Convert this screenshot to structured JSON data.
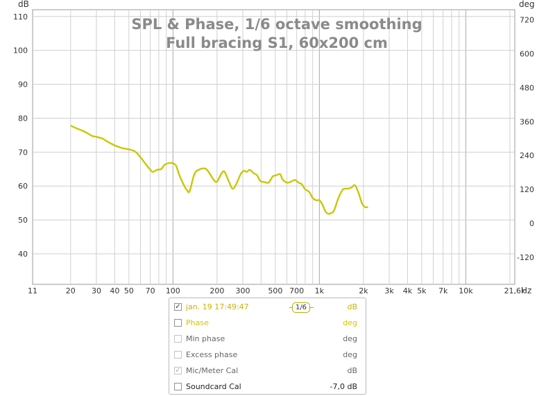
{
  "chart_data": {
    "type": "line",
    "title": [
      "SPL & Phase, 1/6 octave smoothing",
      "Full bracing S1, 60x200 cm"
    ],
    "xlabel": "Hz",
    "left_unit": "dB",
    "right_unit": "deg",
    "xscale": "log",
    "xlim": [
      11,
      21600
    ],
    "ylim": [
      31,
      112
    ],
    "y2lim": [
      -216,
      756
    ],
    "grid": true,
    "x_ticks": [
      {
        "v": 11,
        "label": "11"
      },
      {
        "v": 20,
        "label": "20"
      },
      {
        "v": 30,
        "label": "30"
      },
      {
        "v": 40,
        "label": "40"
      },
      {
        "v": 50,
        "label": "50"
      },
      {
        "v": 70,
        "label": "70"
      },
      {
        "v": 100,
        "label": "100"
      },
      {
        "v": 200,
        "label": "200"
      },
      {
        "v": 300,
        "label": "300"
      },
      {
        "v": 500,
        "label": "500"
      },
      {
        "v": 700,
        "label": "700"
      },
      {
        "v": 1000,
        "label": "1k"
      },
      {
        "v": 2000,
        "label": "2k"
      },
      {
        "v": 3000,
        "label": "3k"
      },
      {
        "v": 4000,
        "label": "4k"
      },
      {
        "v": 5000,
        "label": "5k"
      },
      {
        "v": 7000,
        "label": "7k"
      },
      {
        "v": 10000,
        "label": "10k"
      },
      {
        "v": 21600,
        "label": "21,6k"
      }
    ],
    "y_ticks": [
      40,
      50,
      60,
      70,
      80,
      90,
      100,
      110
    ],
    "y2_ticks": [
      -120,
      0,
      120,
      240,
      360,
      480,
      600,
      720
    ],
    "series": [
      {
        "name": "jan. 19 17:49:47",
        "color": "#c8c800",
        "points": [
          [
            20,
            77.8
          ],
          [
            22,
            77.0
          ],
          [
            25,
            76.0
          ],
          [
            28,
            74.8
          ],
          [
            30,
            74.5
          ],
          [
            33,
            74.0
          ],
          [
            36,
            73.0
          ],
          [
            40,
            72.0
          ],
          [
            45,
            71.2
          ],
          [
            50,
            70.8
          ],
          [
            55,
            70.2
          ],
          [
            60,
            68.5
          ],
          [
            65,
            66.5
          ],
          [
            70,
            64.8
          ],
          [
            73,
            64.2
          ],
          [
            78,
            64.8
          ],
          [
            83,
            65.0
          ],
          [
            88,
            66.3
          ],
          [
            95,
            66.8
          ],
          [
            100,
            66.7
          ],
          [
            105,
            66.0
          ],
          [
            110,
            63.5
          ],
          [
            118,
            60.5
          ],
          [
            125,
            58.7
          ],
          [
            130,
            58.5
          ],
          [
            140,
            63.5
          ],
          [
            150,
            64.8
          ],
          [
            165,
            65.2
          ],
          [
            175,
            64.2
          ],
          [
            190,
            61.8
          ],
          [
            200,
            61.3
          ],
          [
            215,
            63.8
          ],
          [
            225,
            64.2
          ],
          [
            240,
            61.5
          ],
          [
            255,
            59.2
          ],
          [
            270,
            60.5
          ],
          [
            290,
            63.5
          ],
          [
            305,
            64.5
          ],
          [
            320,
            64.2
          ],
          [
            335,
            64.8
          ],
          [
            355,
            63.8
          ],
          [
            375,
            63.2
          ],
          [
            395,
            61.5
          ],
          [
            420,
            61.2
          ],
          [
            450,
            61.0
          ],
          [
            480,
            62.8
          ],
          [
            510,
            63.2
          ],
          [
            540,
            63.5
          ],
          [
            560,
            62.0
          ],
          [
            600,
            61.0
          ],
          [
            640,
            61.3
          ],
          [
            680,
            61.8
          ],
          [
            720,
            61.0
          ],
          [
            760,
            60.5
          ],
          [
            800,
            59.0
          ],
          [
            850,
            58.3
          ],
          [
            900,
            56.5
          ],
          [
            950,
            55.8
          ],
          [
            1000,
            55.8
          ],
          [
            1050,
            54.5
          ],
          [
            1100,
            52.5
          ],
          [
            1150,
            51.8
          ],
          [
            1200,
            52.0
          ],
          [
            1260,
            52.8
          ],
          [
            1350,
            56.5
          ],
          [
            1450,
            59.0
          ],
          [
            1550,
            59.2
          ],
          [
            1650,
            59.5
          ],
          [
            1750,
            60.2
          ],
          [
            1850,
            58.0
          ],
          [
            1950,
            55.0
          ],
          [
            2050,
            53.8
          ],
          [
            2150,
            53.8
          ]
        ]
      }
    ]
  },
  "legend": {
    "items": [
      {
        "label": "jan. 19 17:49:47",
        "unit": "dB",
        "checked": true,
        "color": "#c8b400",
        "disabled": false,
        "smoothing": "1/6"
      },
      {
        "label": "Phase",
        "unit": "deg",
        "checked": false,
        "color": "#d6c400",
        "disabled": false
      },
      {
        "label": "Min phase",
        "unit": "deg",
        "checked": false,
        "color": "#666666",
        "disabled": true
      },
      {
        "label": "Excess phase",
        "unit": "deg",
        "checked": false,
        "color": "#666666",
        "disabled": true
      },
      {
        "label": "Mic/Meter Cal",
        "unit": "dB",
        "checked": true,
        "color": "#666666",
        "disabled": true
      },
      {
        "label": "Soundcard Cal",
        "unit": "-7,0 dB",
        "checked": false,
        "color": "#222222",
        "disabled": false
      }
    ]
  }
}
